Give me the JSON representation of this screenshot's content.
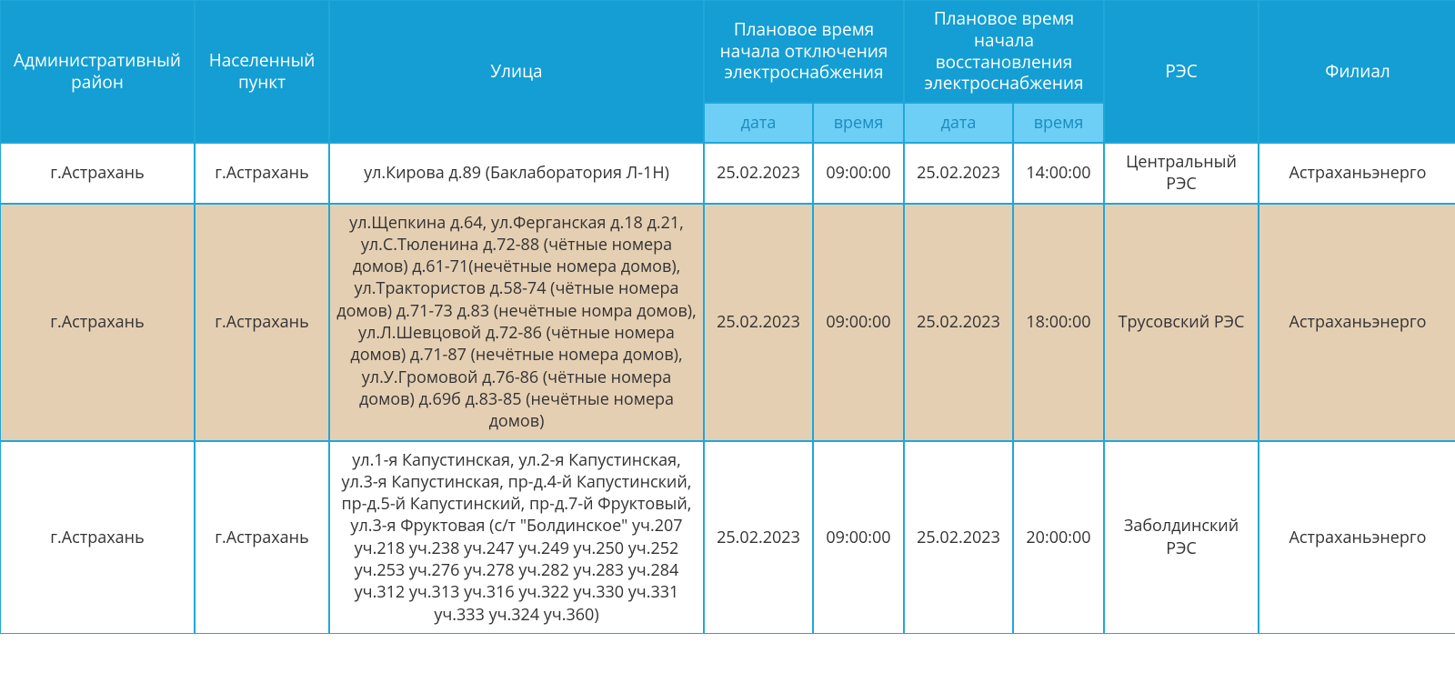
{
  "table": {
    "colors": {
      "header_bg": "#149ed3",
      "header_fg": "#ffffff",
      "subheader_bg": "#6dcff6",
      "subheader_fg": "#1c8bbf",
      "border": "#20a7d8",
      "row_bg": "#ffffff",
      "row_alt_bg": "#e5cfb3",
      "row_fg": "#333333"
    },
    "fonts": {
      "header_size_pt": 14,
      "body_size_pt": 13
    },
    "columns": {
      "district": "Административный район",
      "settlement": "Населенный пункт",
      "street": "Улица",
      "outage": "Плановое время начала отключения электроснабжения",
      "restore": "Плановое время начала восстановления электроснабжения",
      "res": "РЭС",
      "branch": "Филиал",
      "sub_date": "дата",
      "sub_time": "время"
    },
    "rows": [
      {
        "district": "г.Астрахань",
        "settlement": "г.Астрахань",
        "street": "ул.Кирова д.89 (Баклаборатория Л-1Н)",
        "out_date": "25.02.2023",
        "out_time": "09:00:00",
        "rest_date": "25.02.2023",
        "rest_time": "14:00:00",
        "res": "Центральный РЭС",
        "branch": "Астраханьэнерго"
      },
      {
        "district": "г.Астрахань",
        "settlement": "г.Астрахань",
        "street": "ул.Щепкина д.64, ул.Ферганская д.18 д.21, ул.С.Тюленина д.72-88 (чётные номера домов) д.61-71(нечётные номера домов), ул.Трактористов д.58-74 (чётные номера домов) д.71-73 д.83 (нечётные номра домов), ул.Л.Шевцовой д.72-86 (чётные номера домов) д.71-87 (нечётные номера домов), ул.У.Громовой д.76-86 (чётные номера домов) д.69б д.83-85 (нечётные номера домов)",
        "out_date": "25.02.2023",
        "out_time": "09:00:00",
        "rest_date": "25.02.2023",
        "rest_time": "18:00:00",
        "res": "Трусовский РЭС",
        "branch": "Астраханьэнерго"
      },
      {
        "district": "г.Астрахань",
        "settlement": "г.Астрахань",
        "street": "ул.1-я Капустинская, ул.2-я Капустинская, ул.3-я Капустинская, пр-д.4-й Капустинский, пр-д.5-й Капустинский, пр-д.7-й Фруктовый, ул.3-я Фруктовая (с/т \"Болдинское\" уч.207 уч.218 уч.238 уч.247 уч.249 уч.250 уч.252 уч.253 уч.276 уч.278 уч.282 уч.283 уч.284 уч.312 уч.313 уч.316 уч.322 уч.330 уч.331 уч.333 уч.324 уч.360)",
        "out_date": "25.02.2023",
        "out_time": "09:00:00",
        "rest_date": "25.02.2023",
        "rest_time": "20:00:00",
        "res": "Заболдинский РЭС",
        "branch": "Астраханьэнерго"
      }
    ]
  }
}
